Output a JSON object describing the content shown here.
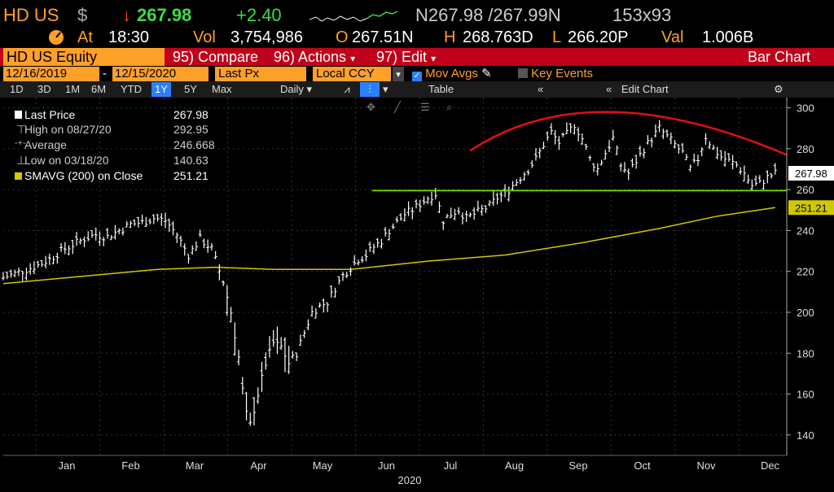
{
  "header": {
    "ticker": "HD US",
    "currency_symbol": "$",
    "arrow": "↓",
    "last": "267.98",
    "change": "+2.40",
    "bid_ask": "N267.98 /267.99N",
    "size": "153x93",
    "at_label": "At",
    "time": "18:30",
    "vol_label": "Vol",
    "volume": "3,754,986",
    "open_label": "O",
    "open": "267.51N",
    "high_label": "H",
    "high": "268.763D",
    "low_label": "L",
    "low": "266.20P",
    "val_label": "Val",
    "value": "1.006B"
  },
  "toolbar": {
    "security": "HD US Equity",
    "compare": "95) Compare",
    "actions": "96) Actions",
    "edit": "97) Edit",
    "chart_type": "Bar Chart"
  },
  "controls": {
    "start_date": "12/16/2019",
    "end_date": "12/15/2020",
    "price_field": "Last Px",
    "currency": "Local CCY",
    "mov_avgs": "Mov Avgs",
    "key_events": "Key Events"
  },
  "ranges": {
    "items": [
      "1D",
      "3D",
      "1M",
      "6M",
      "YTD",
      "1Y",
      "5Y",
      "Max"
    ],
    "active": "1Y",
    "frequency": "Daily",
    "table": "Table",
    "edit_chart": "Edit Chart"
  },
  "legend": {
    "last_price_label": "Last Price",
    "last_price": "267.98",
    "high_label": "High on 08/27/20",
    "high": "292.95",
    "average_label": "Average",
    "average": "246.668",
    "low_label": "Low on 03/18/20",
    "low": "140.63",
    "sma_label": "SMAVG (200)  on Close",
    "sma": "251.21"
  },
  "colors": {
    "amber": "#ffa028",
    "price_bars": "#ffffff",
    "sma": "#d2c800",
    "resistance": "#e01010",
    "support": "#6ee000",
    "header_bar": "#c0001a"
  },
  "chart_data": {
    "type": "bar",
    "y_ticks": [
      140,
      160,
      180,
      200,
      220,
      240,
      260,
      280,
      300
    ],
    "ylim": [
      130,
      305
    ],
    "x_labels": [
      "Jan",
      "Feb",
      "Mar",
      "Apr",
      "May",
      "Jun",
      "Jul",
      "Aug",
      "Sep",
      "Oct",
      "Nov",
      "Dec"
    ],
    "year_label": "2020",
    "last_price_tag": "267.98",
    "sma_tag": "251.21",
    "support_level": 259.5,
    "series_close": [
      [
        0,
        217
      ],
      [
        3,
        219
      ],
      [
        6,
        221
      ],
      [
        9,
        223
      ],
      [
        12,
        226
      ],
      [
        15,
        230
      ],
      [
        18,
        233
      ],
      [
        21,
        236
      ],
      [
        24,
        238
      ],
      [
        27,
        237
      ],
      [
        30,
        240
      ],
      [
        33,
        243
      ],
      [
        36,
        244
      ],
      [
        39,
        246
      ],
      [
        42,
        245
      ],
      [
        45,
        238
      ],
      [
        48,
        228
      ],
      [
        51,
        236
      ],
      [
        54,
        231
      ],
      [
        57,
        215
      ],
      [
        59,
        200
      ],
      [
        61,
        178
      ],
      [
        62,
        162
      ],
      [
        63,
        150
      ],
      [
        64,
        145
      ],
      [
        66,
        160
      ],
      [
        68,
        175
      ],
      [
        70,
        185
      ],
      [
        72,
        183
      ],
      [
        74,
        175
      ],
      [
        76,
        180
      ],
      [
        78,
        190
      ],
      [
        80,
        200
      ],
      [
        82,
        203
      ],
      [
        84,
        205
      ],
      [
        86,
        212
      ],
      [
        88,
        218
      ],
      [
        90,
        222
      ],
      [
        92,
        226
      ],
      [
        94,
        228
      ],
      [
        96,
        232
      ],
      [
        98,
        235
      ],
      [
        100,
        240
      ],
      [
        102,
        244
      ],
      [
        104,
        248
      ],
      [
        106,
        250
      ],
      [
        108,
        253
      ],
      [
        110,
        256
      ],
      [
        112,
        258
      ],
      [
        114,
        245
      ],
      [
        116,
        248
      ],
      [
        118,
        250
      ],
      [
        120,
        246
      ],
      [
        122,
        248
      ],
      [
        124,
        250
      ],
      [
        126,
        252
      ],
      [
        128,
        256
      ],
      [
        130,
        258
      ],
      [
        132,
        262
      ],
      [
        134,
        266
      ],
      [
        136,
        270
      ],
      [
        138,
        275
      ],
      [
        140,
        282
      ],
      [
        142,
        288
      ],
      [
        144,
        283
      ],
      [
        146,
        287
      ],
      [
        148,
        292
      ],
      [
        150,
        285
      ],
      [
        152,
        275
      ],
      [
        154,
        270
      ],
      [
        156,
        278
      ],
      [
        158,
        285
      ],
      [
        160,
        272
      ],
      [
        162,
        268
      ],
      [
        164,
        274
      ],
      [
        166,
        280
      ],
      [
        168,
        285
      ],
      [
        170,
        290
      ],
      [
        172,
        286
      ],
      [
        174,
        282
      ],
      [
        176,
        278
      ],
      [
        178,
        270
      ],
      [
        180,
        275
      ],
      [
        182,
        286
      ],
      [
        184,
        280
      ],
      [
        186,
        276
      ],
      [
        188,
        274
      ],
      [
        190,
        272
      ],
      [
        192,
        268
      ],
      [
        194,
        262
      ],
      [
        196,
        263
      ],
      [
        198,
        266
      ],
      [
        200,
        268
      ]
    ],
    "sma_line": [
      [
        0,
        214
      ],
      [
        40,
        221
      ],
      [
        55,
        222
      ],
      [
        70,
        221
      ],
      [
        90,
        221
      ],
      [
        110,
        225
      ],
      [
        130,
        228
      ],
      [
        150,
        234
      ],
      [
        170,
        241
      ],
      [
        185,
        247
      ],
      [
        200,
        251.2
      ]
    ]
  }
}
